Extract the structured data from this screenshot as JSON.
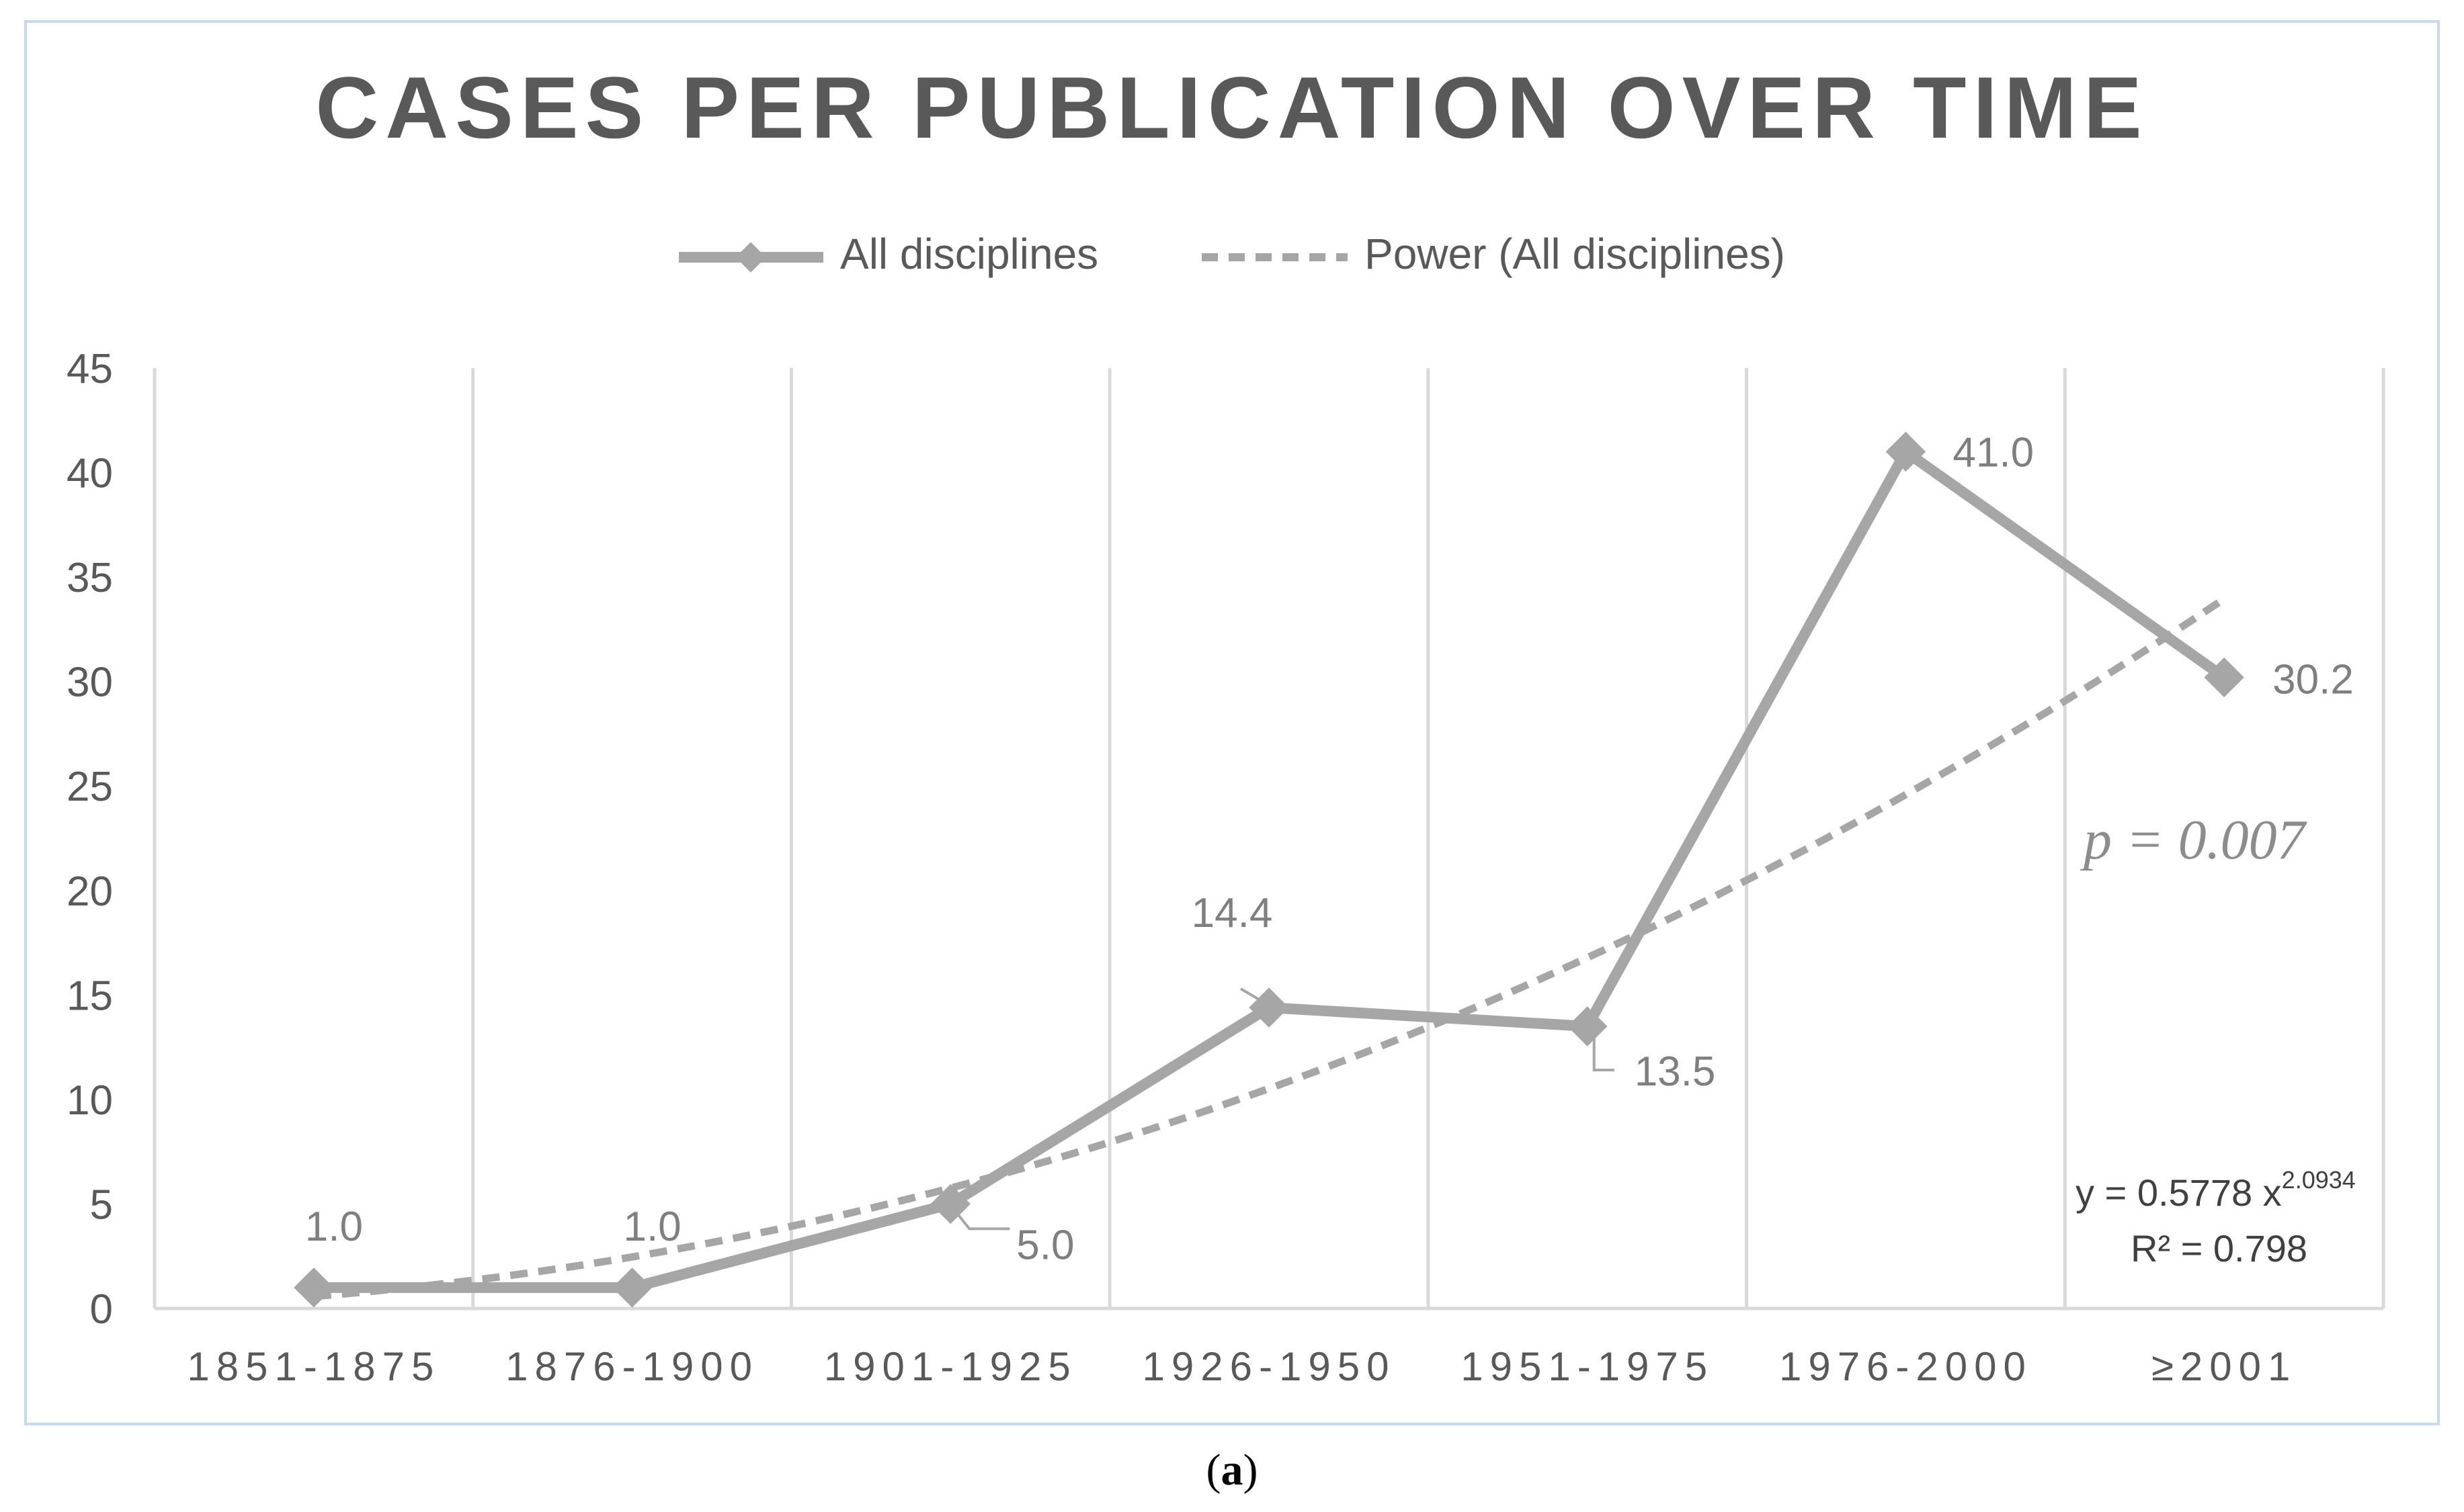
{
  "caption_open": "(",
  "caption_letter": "a",
  "caption_close": ")",
  "chart_data": {
    "type": "line",
    "title": "CASES PER PUBLICATION OVER TIME",
    "categories": [
      "1851-1875",
      "1876-1900",
      "1901-1925",
      "1926-1950",
      "1951-1975",
      "1976-2000",
      "≥2001"
    ],
    "series": [
      {
        "name": "All disciplines",
        "values": [
          1.0,
          1.0,
          5.0,
          14.4,
          13.5,
          41.0,
          30.2
        ],
        "labels": [
          "1.0",
          "1.0",
          "5.0",
          "14.4",
          "13.5",
          "41.0",
          "30.2"
        ],
        "color": "#a6a6a6",
        "marker": "diamond"
      },
      {
        "name": "Power (All disciplines)",
        "type": "trendline",
        "style": "dashed",
        "color": "#a6a6a6",
        "coefficient": 0.5778,
        "exponent": 2.0934
      }
    ],
    "equation": {
      "prefix": "y = 0.5778 x",
      "exponent": "2.0934",
      "r_squared": "R² = 0.798"
    },
    "p_value": "p = 0.007",
    "ylim": [
      0,
      45
    ],
    "yticks": [
      0,
      5,
      10,
      15,
      20,
      25,
      30,
      35,
      40,
      45
    ],
    "ytick_labels": [
      "0",
      "5",
      "10",
      "15",
      "20",
      "25",
      "30",
      "35",
      "40",
      "45"
    ],
    "xlabel": "",
    "ylabel": "",
    "grid": "vertical",
    "legend_position": "top"
  }
}
